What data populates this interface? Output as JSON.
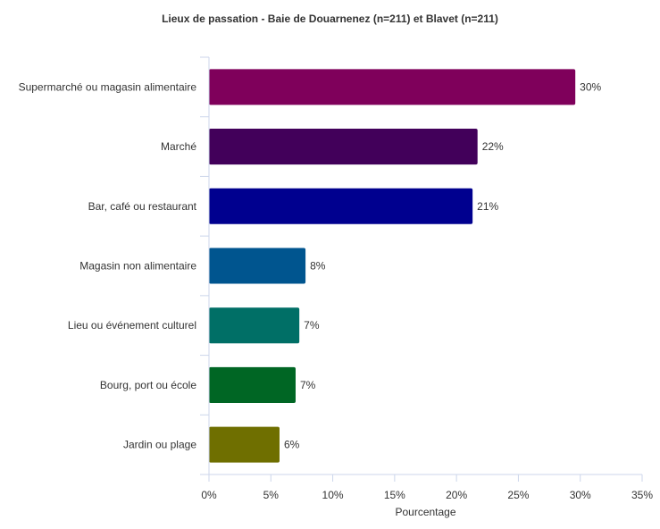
{
  "chart_data": {
    "type": "bar",
    "orientation": "horizontal",
    "title": "Lieux de passation - Baie de Douarnenez (n=211) et Blavet (n=211)",
    "xlabel": "Pourcentage",
    "ylabel": "",
    "xlim": [
      0,
      35
    ],
    "ticks": [
      "0%",
      "5%",
      "10%",
      "15%",
      "20%",
      "25%",
      "30%",
      "35%"
    ],
    "tick_values": [
      0,
      5,
      10,
      15,
      20,
      25,
      30,
      35
    ],
    "grid": false,
    "categories": [
      "Supermarché ou magasin alimentaire",
      "Marché",
      "Bar, café ou restaurant",
      "Magasin non alimentaire",
      "Lieu ou événement culturel",
      "Bourg, port ou école",
      "Jardin ou plage"
    ],
    "values": [
      29.6,
      21.7,
      21.3,
      7.8,
      7.3,
      7.0,
      5.7
    ],
    "data_labels": [
      "30%",
      "22%",
      "21%",
      "8%",
      "7%",
      "7%",
      "6%"
    ],
    "colors": [
      "#7f005b",
      "#42005a",
      "#00008f",
      "#00558f",
      "#006f66",
      "#006624",
      "#6f6f00"
    ]
  }
}
